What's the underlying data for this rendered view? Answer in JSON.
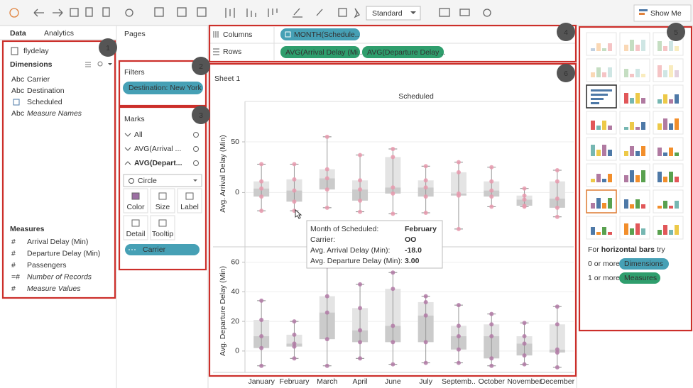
{
  "toolbar": {
    "fit": "Standard",
    "show_me": "Show Me"
  },
  "data_pane": {
    "tabs": [
      "Data",
      "Analytics"
    ],
    "source": "flydelay",
    "dimensions_title": "Dimensions",
    "dimensions": [
      {
        "icon": "Abc",
        "name": "Carrier"
      },
      {
        "icon": "Abc",
        "name": "Destination"
      },
      {
        "name": "Scheduled"
      },
      {
        "icon": "Abc",
        "name": "Measure Names"
      }
    ],
    "measures_title": "Measures",
    "measures": [
      {
        "icon": "#",
        "name": "Arrival Delay (Min)"
      },
      {
        "icon": "#",
        "name": "Departure Delay (Min)"
      },
      {
        "icon": "#",
        "name": "Passengers"
      },
      {
        "icon": "=#",
        "name": "Number of Records"
      },
      {
        "icon": "#",
        "name": "Measure Values"
      }
    ]
  },
  "pages": {
    "title": "Pages"
  },
  "filters": {
    "title": "Filters",
    "items": [
      "Destination: New York"
    ]
  },
  "marks": {
    "title": "Marks",
    "cards": [
      "All",
      "AVG(Arrival ...",
      "AVG(Depart..."
    ],
    "mark_type": "Circle",
    "buttons": [
      "Color",
      "Size",
      "Label",
      "Detail",
      "Tooltip"
    ],
    "fields": [
      "Carrier"
    ]
  },
  "shelves": {
    "columns_label": "Columns",
    "rows_label": "Rows",
    "columns": [
      "MONTH(Schedule.."
    ],
    "rows": [
      "AVG(Arrival Delay (Mi..",
      "AVG(Departure Delay .."
    ]
  },
  "callouts": [
    "1",
    "2",
    "3",
    "4",
    "5",
    "6"
  ],
  "show_me": {
    "hint_prefix": "For",
    "hint_bold": "horizontal bars",
    "hint_suffix": "try",
    "requirements": [
      {
        "count": "0 or more",
        "field": "Dimensions"
      },
      {
        "count": "1 or more",
        "field": "Measures"
      }
    ]
  },
  "tooltip": {
    "rows": [
      {
        "key": "Month of Scheduled:",
        "value": "February"
      },
      {
        "key": "Carrier:",
        "value": "OO"
      },
      {
        "key": "Avg. Arrival Delay (Min):",
        "value": "-18.0"
      },
      {
        "key": "Avg. Departure Delay (Min):",
        "value": "3.00"
      }
    ]
  },
  "chart_data": {
    "type": "boxplot",
    "title": "Sheet 1",
    "column_header": "Scheduled",
    "categories": [
      "January",
      "February",
      "March",
      "April",
      "June",
      "July",
      "Septemb..",
      "October",
      "November",
      "December"
    ],
    "panes": [
      {
        "ylabel": "Avg. Arrival Delay (Min)",
        "color": "#e79aae",
        "ylim": [
          -48,
          85
        ],
        "yticks": [
          0,
          50
        ],
        "grid": true,
        "whisker_low": [
          -18,
          -18,
          -15,
          -19,
          -21,
          -20,
          -36,
          -14,
          -14,
          -24
        ],
        "q1": [
          -4,
          -9,
          3,
          -8,
          -1,
          -4,
          -3,
          -4,
          -13,
          -15
        ],
        "median": [
          4,
          2,
          14,
          3,
          5,
          5,
          -1,
          2,
          -7,
          -6
        ],
        "q3": [
          11,
          13,
          23,
          12,
          35,
          12,
          20,
          11,
          -3,
          11
        ],
        "whisker_high": [
          28,
          28,
          55,
          37,
          43,
          26,
          30,
          25,
          4,
          22
        ]
      },
      {
        "ylabel": "Avg. Departure Delay (Min)",
        "color": "#b27aa6",
        "ylim": [
          -13,
          67
        ],
        "yticks": [
          0,
          20,
          40,
          60
        ],
        "grid": true,
        "whisker_low": [
          -10,
          -5,
          -10,
          -5,
          -9,
          -8,
          -8,
          -10,
          -9,
          -11
        ],
        "q1": [
          2,
          3,
          8,
          6,
          6,
          6,
          1,
          -5,
          -3,
          -1
        ],
        "median": [
          10,
          5,
          26,
          14,
          17,
          24,
          10,
          10,
          5,
          1
        ],
        "q3": [
          21,
          11,
          37,
          29,
          42,
          33,
          17,
          18,
          10,
          18
        ],
        "whisker_high": [
          34,
          20,
          57,
          45,
          53,
          37,
          31,
          25,
          19,
          30
        ]
      }
    ]
  }
}
